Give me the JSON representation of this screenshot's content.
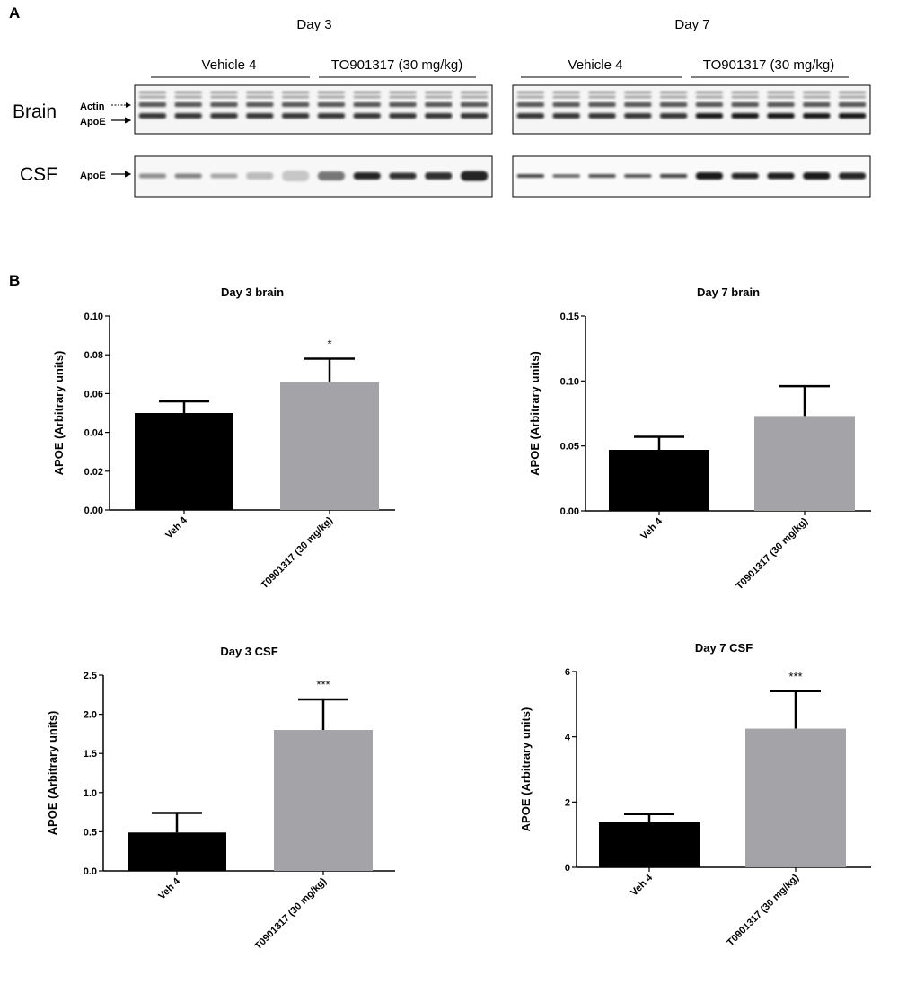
{
  "panel_a": {
    "letter": "A",
    "days": [
      {
        "label": "Day 3",
        "groups": [
          "Vehicle 4",
          "TO901317 (30 mg/kg)"
        ]
      },
      {
        "label": "Day 7",
        "groups": [
          "Vehicle 4",
          "TO901317 (30 mg/kg)"
        ]
      }
    ],
    "rows": [
      {
        "label": "Brain",
        "band_labels": [
          "Actin",
          "ApoE"
        ]
      },
      {
        "label": "CSF",
        "band_labels": [
          "ApoE"
        ]
      }
    ],
    "lanes_per_blot": 10
  },
  "panel_b": {
    "letter": "B"
  },
  "chart_data": [
    {
      "type": "bar",
      "title": "Day 3 brain",
      "ylabel": "APOE (Arbitrary units)",
      "categories": [
        "Veh 4",
        "T0901317 (30 mg/kg)"
      ],
      "values": [
        0.05,
        0.066
      ],
      "errors": [
        0.006,
        0.012
      ],
      "colors": [
        "#000000",
        "#a3a3a8"
      ],
      "ylim": [
        0,
        0.1
      ],
      "yticks": [
        0,
        0.02,
        0.04,
        0.06,
        0.08,
        0.1
      ],
      "tick_labels": [
        "0.00",
        "0.02",
        "0.04",
        "0.06",
        "0.08",
        "0.10"
      ],
      "significance": [
        "",
        "*"
      ]
    },
    {
      "type": "bar",
      "title": "Day 7 brain",
      "ylabel": "APOE (Arbitrary units)",
      "categories": [
        "Veh 4",
        "T0901317 (30 mg/kg)"
      ],
      "values": [
        0.047,
        0.073
      ],
      "errors": [
        0.01,
        0.023
      ],
      "colors": [
        "#000000",
        "#a3a3a8"
      ],
      "ylim": [
        0,
        0.15
      ],
      "yticks": [
        0,
        0.05,
        0.1,
        0.15
      ],
      "tick_labels": [
        "0.00",
        "0.05",
        "0.10",
        "0.15"
      ],
      "significance": [
        "",
        ""
      ]
    },
    {
      "type": "bar",
      "title": "Day 3 CSF",
      "ylabel": "APOE (Arbitrary units)",
      "categories": [
        "Veh 4",
        "T0901317 (30 mg/kg)"
      ],
      "values": [
        0.49,
        1.8
      ],
      "errors": [
        0.25,
        0.39
      ],
      "colors": [
        "#000000",
        "#a3a3a8"
      ],
      "ylim": [
        0,
        2.5
      ],
      "yticks": [
        0,
        0.5,
        1.0,
        1.5,
        2.0,
        2.5
      ],
      "tick_labels": [
        "0.0",
        "0.5",
        "1.0",
        "1.5",
        "2.0",
        "2.5"
      ],
      "significance": [
        "",
        "***"
      ]
    },
    {
      "type": "bar",
      "title": "Day 7 CSF",
      "ylabel": "APOE (Arbitrary units)",
      "categories": [
        "Veh 4",
        "T0901317 (30 mg/kg)"
      ],
      "values": [
        1.38,
        4.25
      ],
      "errors": [
        0.25,
        1.15
      ],
      "colors": [
        "#000000",
        "#a3a3a8"
      ],
      "ylim": [
        0,
        6
      ],
      "yticks": [
        0,
        2,
        4,
        6
      ],
      "tick_labels": [
        "0",
        "2",
        "4",
        "6"
      ],
      "significance": [
        "",
        "***"
      ]
    }
  ]
}
